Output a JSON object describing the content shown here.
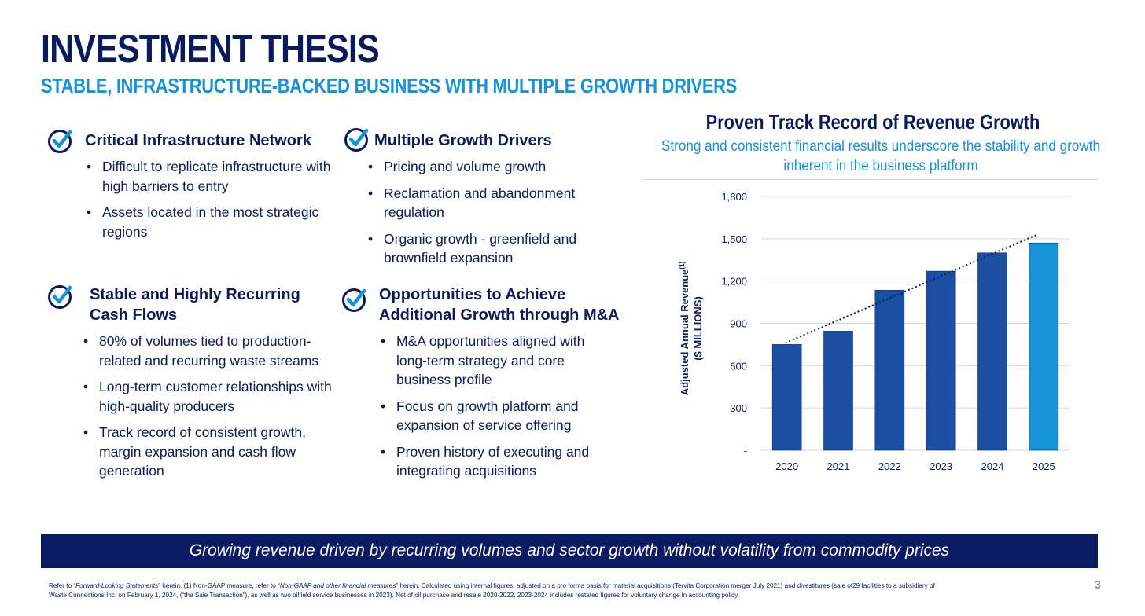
{
  "header": {
    "title": "INVESTMENT THESIS",
    "subtitle": "STABLE, INFRASTRUCTURE-BACKED BUSINESS WITH MULTIPLE GROWTH DRIVERS"
  },
  "blocks": [
    {
      "title": "Critical Infrastructure Network",
      "bullets": [
        "Difficult to replicate infrastructure with high barriers to entry",
        "Assets located in the most strategic regions"
      ]
    },
    {
      "title": "Multiple Growth Drivers",
      "bullets": [
        "Pricing and volume growth",
        "Reclamation and abandonment regulation",
        "Organic growth - greenfield and brownfield expansion"
      ]
    },
    {
      "title": "Stable and Highly Recurring Cash Flows",
      "bullets": [
        "80% of volumes tied to production-related and recurring waste streams",
        "Long-term customer relationships with high-quality producers",
        "Track record of consistent growth, margin expansion and cash flow generation"
      ]
    },
    {
      "title": "Opportunities to Achieve Additional Growth through M&A",
      "bullets": [
        "M&A opportunities aligned with long-term strategy and core business profile",
        "Focus on growth platform and expansion of service offering",
        "Proven history of executing and integrating acquisitions"
      ]
    }
  ],
  "chart_panel": {
    "title": "Proven Track Record of Revenue Growth",
    "subtitle": "Strong and consistent financial results underscore the stability and growth inherent in the business platform"
  },
  "chart_data": {
    "type": "bar",
    "categories": [
      "2020",
      "2021",
      "2022",
      "2023",
      "2024",
      "2025"
    ],
    "values": [
      750,
      845,
      1135,
      1270,
      1400,
      1470
    ],
    "ylabel_line1": "Adjusted Annual Revenue",
    "ylabel_sup": "(1)",
    "ylabel_line2": "($ MILLIONS)",
    "ylim": [
      0,
      1800
    ],
    "yticks": [
      0,
      300,
      600,
      900,
      1200,
      1500,
      1800
    ],
    "ytick_labels": [
      "-",
      "300",
      "600",
      "900",
      "1,200",
      "1,500",
      "1,800"
    ],
    "trendline": {
      "start": 750,
      "end": 1530,
      "style": "dotted"
    },
    "grid": true,
    "colors": {
      "bar": "#1a4fa3",
      "highlight": "#1592d8",
      "highlight_index": 5
    }
  },
  "banner": {
    "text": "Growing revenue driven by recurring volumes and sector growth without volatility from commodity prices"
  },
  "footnote": {
    "prefix1": "Refer to “",
    "ref1": "Forward-Looking Statements",
    "mid1": "” herein. (1) Non-GAAP measure, refer to “",
    "ref2": "Non-GAAP and other financial measures",
    "rest": "” herein. Calculated using internal figures, adjusted on a pro forma basis for material acquisitions (Tervita Corporation merger July 2021) and divestitures (sale of29 facilities to a subsidiary of Waste Connections Inc. on February 1, 2024, (“the Sale Transaction”), as well as two oilfield service businesses in 2023). Net of oil purchase and resale 2020-2022, 2023-2024 includes restated figures for voluntary change in accounting policy."
  },
  "page_number": "3",
  "colors": {
    "navy": "#0b1a5c",
    "accent": "#1592d8",
    "banner": "#0a1a63"
  },
  "icons": {
    "check": "check-circle-icon"
  }
}
